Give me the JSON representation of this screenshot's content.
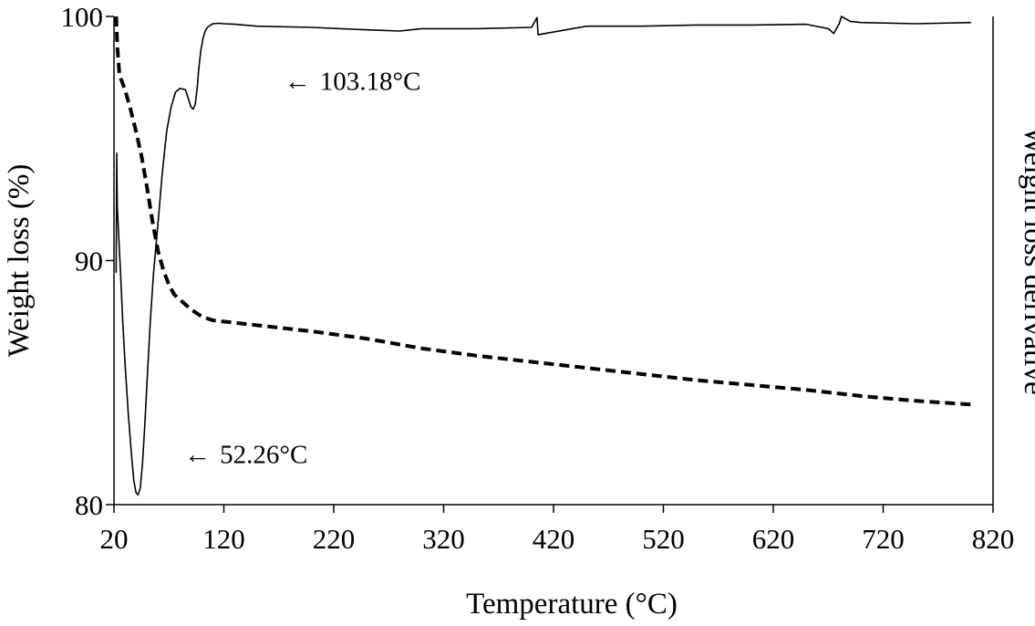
{
  "chart_data": {
    "type": "line",
    "title": "",
    "xlabel": "Temperature (°C)",
    "ylabel": "Weight loss (%)",
    "y2label": "Weight loss derivative",
    "xlim": [
      20,
      820
    ],
    "ylim": [
      80,
      100
    ],
    "x_ticks": [
      20,
      120,
      220,
      320,
      420,
      520,
      620,
      720,
      820
    ],
    "x_tick_labels": [
      "20",
      "120",
      "220",
      "320",
      "420",
      "520",
      "620",
      "720",
      "820"
    ],
    "y_ticks": [
      80,
      90,
      100
    ],
    "y_tick_labels": [
      "80",
      "90",
      "100"
    ],
    "grid": false,
    "legend": "none",
    "series": [
      {
        "style": "dashed",
        "x": [
          22,
          23,
          25,
          30,
          35,
          40,
          45,
          50,
          55,
          60,
          65,
          70,
          75,
          80,
          90,
          100,
          110,
          120,
          150,
          200,
          250,
          300,
          350,
          400,
          450,
          500,
          550,
          600,
          650,
          700,
          750,
          800
        ],
        "y": [
          100,
          98.8,
          97.6,
          97.0,
          96.2,
          95.3,
          94.3,
          93.0,
          91.6,
          90.4,
          89.6,
          89.0,
          88.6,
          88.4,
          88.0,
          87.7,
          87.55,
          87.5,
          87.35,
          87.1,
          86.8,
          86.4,
          86.1,
          85.85,
          85.6,
          85.35,
          85.1,
          84.9,
          84.7,
          84.45,
          84.25,
          84.1
        ]
      },
      {
        "style": "solid",
        "x": [
          22,
          22.5,
          23,
          24,
          26,
          28,
          30,
          33,
          36,
          38,
          40,
          42,
          44,
          46,
          48,
          50,
          53,
          56,
          60,
          64,
          68,
          72,
          76,
          80,
          85,
          88,
          90,
          92,
          94,
          96,
          97,
          99,
          101,
          103,
          105,
          108,
          110,
          115,
          120,
          130,
          150,
          200,
          250,
          280,
          300,
          350,
          400,
          405,
          406,
          450,
          500,
          550,
          600,
          650,
          670,
          675,
          680,
          682,
          690,
          700,
          750,
          800
        ],
        "y": [
          89.5,
          94.4,
          92.2,
          91.3,
          89.5,
          87.5,
          85.8,
          83.7,
          82.0,
          81.0,
          80.5,
          80.4,
          80.7,
          81.7,
          83.2,
          85.0,
          87.5,
          89.5,
          91.5,
          93.6,
          95.3,
          96.3,
          96.9,
          97.05,
          97.0,
          96.6,
          96.3,
          96.2,
          96.4,
          97.2,
          97.8,
          98.6,
          99.1,
          99.4,
          99.55,
          99.65,
          99.7,
          99.72,
          99.7,
          99.68,
          99.6,
          99.55,
          99.45,
          99.4,
          99.5,
          99.5,
          99.55,
          99.95,
          99.25,
          99.6,
          99.6,
          99.65,
          99.65,
          99.68,
          99.5,
          99.3,
          99.7,
          100.0,
          99.8,
          99.75,
          99.7,
          99.75
        ]
      }
    ],
    "annotations": [
      {
        "text": "103.18°C",
        "arrow": "←",
        "x": 175,
        "y": 97.0
      },
      {
        "text": "52.26°C",
        "arrow": "←",
        "x": 84,
        "y": 81.7
      }
    ]
  }
}
